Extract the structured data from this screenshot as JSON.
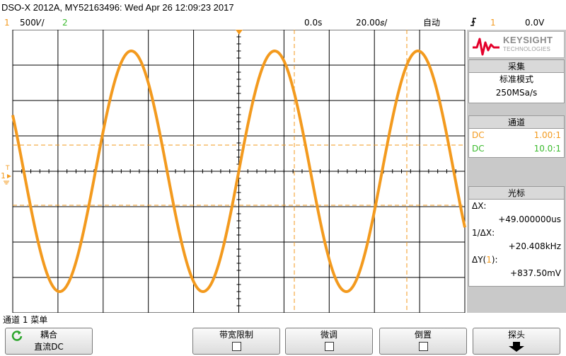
{
  "header": {
    "title": "DSO-X 2012A, MY52163496: Wed Apr 26 12:09:23 2017",
    "ch1_number": "1",
    "ch1_scale": "500𝑉/",
    "ch2_number": "2",
    "time_offset": "0.0s",
    "time_scale": "20.00𝑠/",
    "trigger_mode": "自动",
    "trigger_icon": "rising-edge-icon",
    "trigger_source": "1",
    "trigger_level": "0.0V"
  },
  "screen": {
    "ch1_marker": "1",
    "trigger_marker": "T",
    "colors": {
      "trace": "#f39a1e",
      "grid": "#000000",
      "background": "#ffffff",
      "cursor": "#f39a1e"
    }
  },
  "side_panel": {
    "logo": {
      "name": "KEYSIGHT",
      "subtitle": "TECHNOLOGIES",
      "brand_color": "#e4002b"
    },
    "acquisition": {
      "header": "采集",
      "mode": "标准模式",
      "rate": "250MSa/s"
    },
    "channels": {
      "header": "通道",
      "rows": [
        {
          "coupling": "DC",
          "probe": "1.00:1",
          "color": "#f39a1e"
        },
        {
          "coupling": "DC",
          "probe": "10.0:1",
          "color": "#3bbb2e"
        }
      ]
    },
    "cursors": {
      "header": "光标",
      "dx_label": "ΔX:",
      "dx_value": "+49.000000us",
      "inv_dx_label": "1/ΔX:",
      "inv_dx_value": "+20.408kHz",
      "dy_label_prefix": "ΔY(",
      "dy_channel": "1",
      "dy_label_suffix": "):",
      "dy_value": "+837.50mV"
    }
  },
  "menu": {
    "title": "通道 1 菜单",
    "softkeys": [
      {
        "label": "耦合",
        "value": "直流DC",
        "icon": "rotate-arrow-icon"
      },
      {
        "label": "带宽限制",
        "checked": false
      },
      {
        "label": "微调",
        "checked": false
      },
      {
        "label": "倒置",
        "checked": false
      },
      {
        "label": "探头",
        "icon": "arrow-down-icon"
      }
    ]
  }
}
